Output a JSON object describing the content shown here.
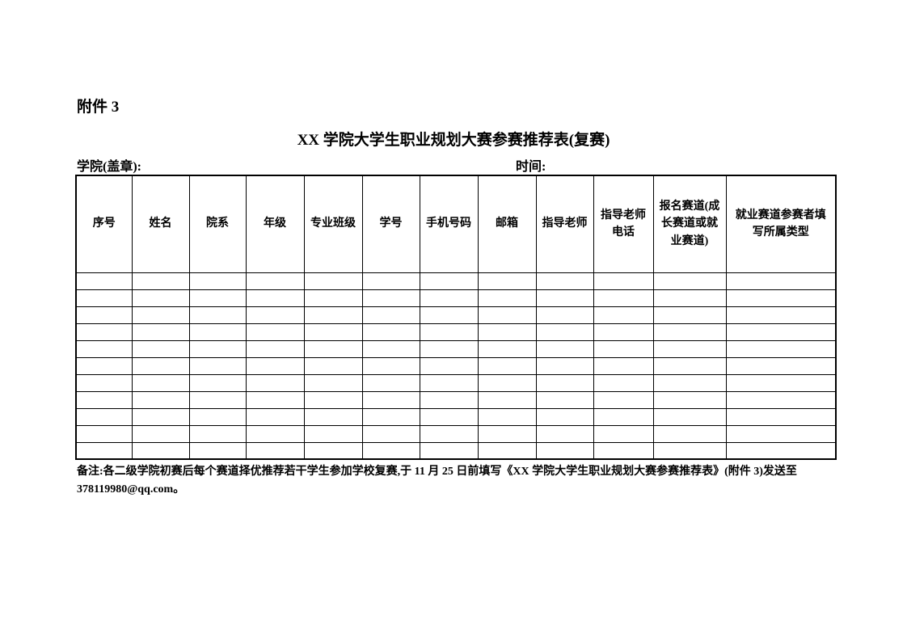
{
  "page": {
    "attachment_label": "附件 3",
    "title": "XX 学院大学生职业规划大赛参赛推荐表(复赛)",
    "college_seal_label": "学院(盖章):",
    "time_label": "时间:"
  },
  "table": {
    "headers": [
      "序号",
      "姓名",
      "院系",
      "年级",
      "专业班级",
      "学号",
      "手机号码",
      "邮箱",
      "指导老师",
      "指导老师\n电话",
      "报名赛道(成\n长赛道或就\n业赛道)",
      "就业赛道参赛者填\n写所属类型"
    ],
    "empty_row_count": 11
  },
  "note": {
    "line1": "备注:各二级学院初赛后每个赛道择优推荐若干学生参加学校复赛,于 11 月 25 日前填写《XX 学院大学生职业规划大赛参赛推荐表》(附件 3)发送至",
    "line2": "378119980@qq.com。"
  },
  "colors": {
    "text": "#000000",
    "border": "#000000",
    "background": "#ffffff"
  }
}
